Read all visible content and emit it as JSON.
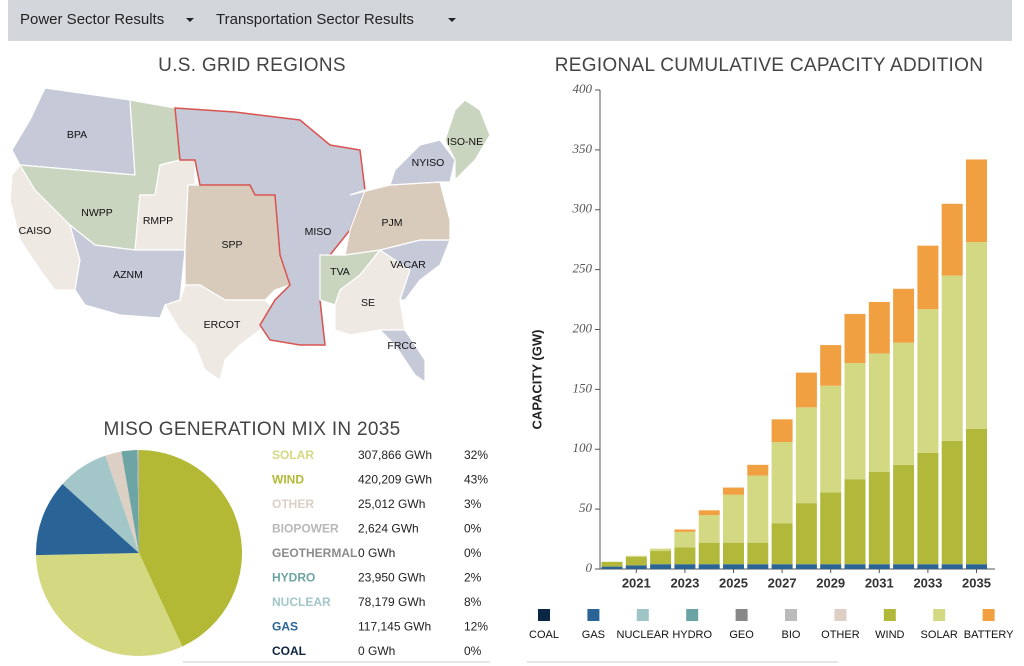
{
  "nav": {
    "items": [
      "Power Sector Results",
      "Transportation Sector Results"
    ]
  },
  "map": {
    "title": "U.S. GRID REGIONS",
    "regions": [
      "BPA",
      "NWPP",
      "CAISO",
      "RMPP",
      "AZNM",
      "SPP",
      "ERCOT",
      "MISO",
      "TVA",
      "SE",
      "FRCC",
      "VACAR",
      "PJM",
      "NYISO",
      "ISO-NE"
    ]
  },
  "chart_data": [
    {
      "type": "pie",
      "title": "MISO GENERATION MIX IN 2035",
      "categories": [
        "SOLAR",
        "WIND",
        "OTHER",
        "BIOPOWER",
        "GEOTHERMAL",
        "HYDRO",
        "NUCLEAR",
        "GAS",
        "COAL"
      ],
      "values": [
        307866,
        420209,
        25012,
        2624,
        0,
        23950,
        78179,
        117145,
        0
      ],
      "value_labels": [
        "307,866 GWh",
        "420,209 GWh",
        "25,012 GWh",
        "2,624 GWh",
        "0 GWh",
        "23,950 GWh",
        "78,179 GWh",
        "117,145 GWh",
        "0 GWh"
      ],
      "share_labels": [
        "32%",
        "43%",
        "3%",
        "0%",
        "0%",
        "2%",
        "8%",
        "12%",
        "0%"
      ],
      "colors": [
        "#d4d880",
        "#b3b935",
        "#dccfc4",
        "#b8b8b8",
        "#8c8c8c",
        "#6da4a4",
        "#a3c6c8",
        "#2a6497",
        "#0c2340"
      ]
    },
    {
      "type": "stacked-bar",
      "title": "REGIONAL CUMULATIVE CAPACITY ADDITION",
      "y_label": "CAPACITY (GW)",
      "categories": [
        null,
        "2021",
        null,
        "2023",
        null,
        "2025",
        null,
        "2027",
        null,
        "2029",
        null,
        "2031",
        null,
        "2033",
        null,
        "2035"
      ],
      "ylim": [
        0,
        400
      ],
      "yticks": [
        0,
        50,
        100,
        150,
        200,
        250,
        300,
        350,
        400
      ],
      "series": [
        {
          "name": "COAL",
          "color": "#0b2545",
          "values": [
            0,
            0,
            0,
            0,
            0,
            0,
            0,
            0,
            0,
            0,
            0,
            0,
            0,
            0,
            0,
            0
          ]
        },
        {
          "name": "GAS",
          "color": "#2a6496",
          "values": [
            2,
            3,
            4,
            4,
            4,
            4,
            4,
            4,
            4,
            4,
            4,
            4,
            4,
            4,
            4,
            4
          ]
        },
        {
          "name": "NUCLEAR",
          "color": "#9ec4c6",
          "values": [
            0,
            0,
            0,
            0,
            0,
            0,
            0,
            0,
            0,
            0,
            0,
            0,
            0,
            0,
            0,
            0
          ]
        },
        {
          "name": "HYDRO",
          "color": "#6aa3a3",
          "values": [
            0,
            0,
            0,
            0,
            0,
            0,
            0,
            0,
            0,
            0,
            0,
            0,
            0,
            0,
            0,
            0
          ]
        },
        {
          "name": "GEO",
          "color": "#888888",
          "values": [
            0,
            0,
            0,
            0,
            0,
            0,
            0,
            0,
            0,
            0,
            0,
            0,
            0,
            0,
            0,
            0
          ]
        },
        {
          "name": "BIO",
          "color": "#bbbbbb",
          "values": [
            0,
            0,
            0,
            0,
            0,
            0,
            0,
            0,
            0,
            0,
            0,
            0,
            0,
            0,
            0,
            0
          ]
        },
        {
          "name": "OTHER",
          "color": "#ddcfc4",
          "values": [
            0,
            0,
            0,
            0,
            0,
            0,
            0,
            0,
            0,
            0,
            0,
            0,
            0,
            0,
            0,
            0
          ]
        },
        {
          "name": "WIND",
          "color": "#b2b83a",
          "values": [
            4,
            7,
            11,
            14,
            18,
            18,
            18,
            34,
            51,
            60,
            71,
            77,
            83,
            93,
            103,
            113
          ]
        },
        {
          "name": "SOLAR",
          "color": "#d3d882",
          "values": [
            0,
            1,
            2,
            13,
            23,
            40,
            56,
            68,
            80,
            89,
            97,
            99,
            102,
            120,
            138,
            156
          ]
        },
        {
          "name": "BATTERY",
          "color": "#f0a040",
          "values": [
            0,
            0,
            0,
            2,
            4,
            6,
            9,
            19,
            29,
            34,
            41,
            43,
            45,
            53,
            60,
            69
          ]
        }
      ]
    }
  ]
}
